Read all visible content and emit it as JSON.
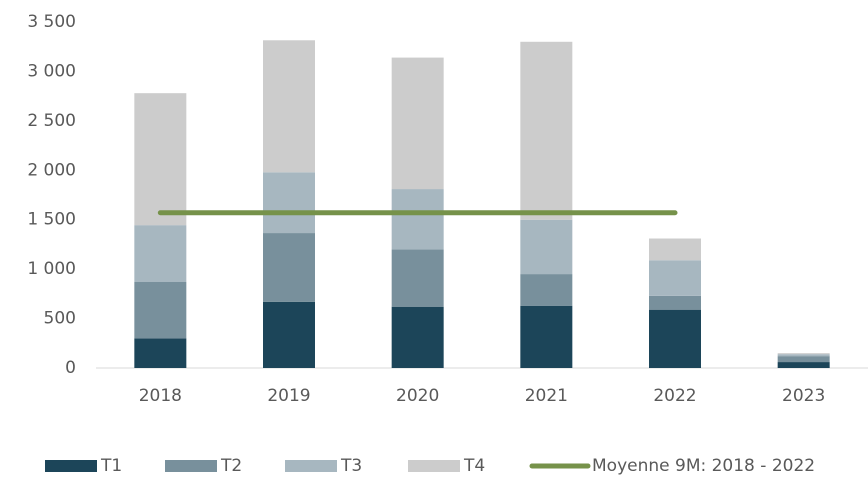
{
  "chart_data": {
    "type": "bar",
    "categories": [
      "2018",
      "2019",
      "2020",
      "2021",
      "2022",
      "2023"
    ],
    "series": [
      {
        "name": "T1",
        "color": "#1c4559",
        "values": [
          300,
          670,
          620,
          630,
          590,
          60
        ]
      },
      {
        "name": "T2",
        "color": "#78909c",
        "values": [
          570,
          695,
          580,
          320,
          140,
          60
        ]
      },
      {
        "name": "T3",
        "color": "#a7b7c0",
        "values": [
          575,
          615,
          610,
          550,
          360,
          20
        ]
      },
      {
        "name": "T4",
        "color": "#cccccc",
        "values": [
          1335,
          1335,
          1330,
          1800,
          220,
          10
        ]
      },
      {
        "name": "Moyenne 9M: 2018 - 2022",
        "color": "#76924a",
        "type": "line",
        "values": [
          1570,
          1570,
          1570,
          1570,
          1570,
          null
        ]
      }
    ],
    "stacked": true,
    "ylim": [
      0,
      3500
    ],
    "yticks": [
      0,
      500,
      {
        "value": 1000,
        "label": "1 000"
      },
      {
        "value": 1500,
        "label": "1 500"
      },
      {
        "value": 2000,
        "label": "2 000"
      },
      {
        "value": 2500,
        "label": "2 500"
      },
      {
        "value": 3000,
        "label": "3 000"
      },
      {
        "value": 3500,
        "label": "3 500"
      }
    ],
    "legend": "bottom"
  }
}
